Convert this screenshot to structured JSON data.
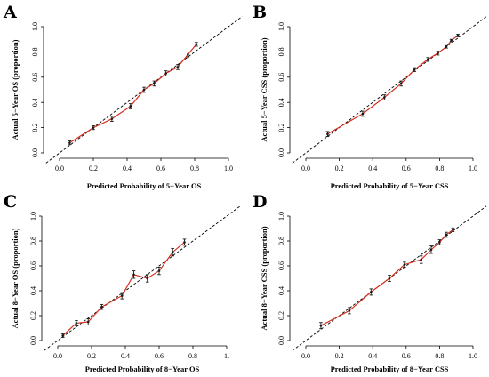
{
  "chart_data": [
    {
      "type": "line",
      "panel": "A",
      "xlabel": "Predicted Probability of 5−Year OS",
      "ylabel": "Actual 5−Year OS (proportion)",
      "xlim": [
        0,
        1
      ],
      "ylim": [
        0,
        1
      ],
      "x_ticks": [
        "0.0",
        "0.2",
        "0.4",
        "0.6",
        "0.8",
        "1.0"
      ],
      "y_ticks": [
        "0.0",
        "0.2",
        "0.4",
        "0.6",
        "0.8",
        "1.0"
      ],
      "reference_line": "diagonal dashed",
      "series": [
        {
          "x": [
            0.06,
            0.2,
            0.31,
            0.42,
            0.5,
            0.56,
            0.63,
            0.7,
            0.76,
            0.81
          ],
          "y": [
            0.08,
            0.2,
            0.27,
            0.37,
            0.5,
            0.55,
            0.63,
            0.68,
            0.78,
            0.86
          ],
          "err": [
            0.015,
            0.015,
            0.02,
            0.02,
            0.02,
            0.02,
            0.02,
            0.02,
            0.02,
            0.015
          ]
        }
      ]
    },
    {
      "type": "line",
      "panel": "B",
      "xlabel": "Predicted Probability of 5−Year CSS",
      "ylabel": "Actual 5−Year CSS (proportion)",
      "xlim": [
        0,
        1
      ],
      "ylim": [
        0,
        1
      ],
      "x_ticks": [
        "0.0",
        "0.2",
        "0.4",
        "0.6",
        "0.8",
        "1.0"
      ],
      "y_ticks": [
        "0.0",
        "0.2",
        "0.4",
        "0.6",
        "0.8",
        "1.0"
      ],
      "reference_line": "diagonal dashed",
      "series": [
        {
          "x": [
            0.13,
            0.34,
            0.47,
            0.57,
            0.65,
            0.73,
            0.79,
            0.84,
            0.87,
            0.91
          ],
          "y": [
            0.15,
            0.31,
            0.44,
            0.55,
            0.66,
            0.74,
            0.79,
            0.84,
            0.89,
            0.93
          ],
          "err": [
            0.02,
            0.02,
            0.02,
            0.02,
            0.015,
            0.015,
            0.015,
            0.01,
            0.01,
            0.01
          ]
        }
      ]
    },
    {
      "type": "line",
      "panel": "C",
      "xlabel": "Predicted Probability of 8−Year OS",
      "ylabel": "Actual 8−Year OS (proportion)",
      "xlim": [
        0,
        1
      ],
      "ylim": [
        0,
        1
      ],
      "x_ticks": [
        "0.0",
        "0.2",
        "0.4",
        "0.6",
        "0.8",
        "1."
      ],
      "y_ticks": [
        "0.0",
        "0.2",
        "0.4",
        "0.6",
        "0.8",
        "1.0"
      ],
      "reference_line": "diagonal dashed",
      "series": [
        {
          "x": [
            0.03,
            0.11,
            0.18,
            0.26,
            0.38,
            0.45,
            0.53,
            0.6,
            0.68,
            0.75
          ],
          "y": [
            0.04,
            0.14,
            0.15,
            0.27,
            0.36,
            0.53,
            0.5,
            0.56,
            0.71,
            0.79
          ],
          "err": [
            0.015,
            0.02,
            0.025,
            0.02,
            0.025,
            0.03,
            0.03,
            0.03,
            0.03,
            0.025
          ]
        }
      ]
    },
    {
      "type": "line",
      "panel": "D",
      "xlabel": "Predicted Probability of 8−Year CSS",
      "ylabel": "Actual 8−Year CSS (proportion)",
      "xlim": [
        0,
        1
      ],
      "ylim": [
        0,
        1
      ],
      "x_ticks": [
        "0.0",
        "0.2",
        "0.4",
        "0.6",
        "0.8",
        "1.0"
      ],
      "y_ticks": [
        "0.0",
        "0.2",
        "0.4",
        "0.6",
        "0.8",
        "1.0"
      ],
      "reference_line": "diagonal dashed",
      "series": [
        {
          "x": [
            0.09,
            0.26,
            0.39,
            0.5,
            0.59,
            0.69,
            0.75,
            0.8,
            0.84,
            0.88
          ],
          "y": [
            0.12,
            0.24,
            0.39,
            0.5,
            0.61,
            0.65,
            0.73,
            0.79,
            0.85,
            0.89
          ],
          "err": [
            0.025,
            0.025,
            0.025,
            0.025,
            0.02,
            0.03,
            0.03,
            0.02,
            0.02,
            0.015
          ]
        }
      ]
    }
  ],
  "colors": {
    "line": "#d7301f",
    "marker": "#1a1a1a",
    "errorbar": "#1a1a1a",
    "reference": "#000000"
  }
}
